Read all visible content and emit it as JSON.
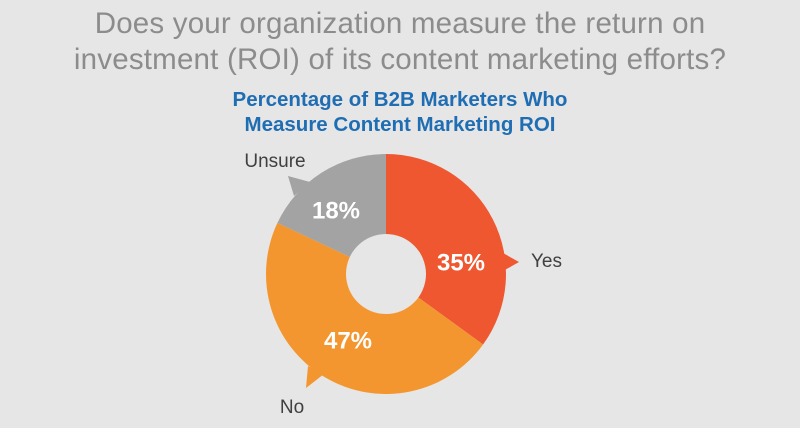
{
  "question": {
    "line1": "Does your organization measure the return on",
    "line2": "investment (ROI) of its content marketing efforts?"
  },
  "chart_data": {
    "type": "pie",
    "variant": "donut",
    "title_line1": "Percentage of B2B Marketers Who",
    "title_line2": "Measure Content Marketing ROI",
    "slices": [
      {
        "label": "Yes",
        "value": 35,
        "display": "35%",
        "color": "#ef5731"
      },
      {
        "label": "No",
        "value": 47,
        "display": "47%",
        "color": "#f4962f"
      },
      {
        "label": "Unsure",
        "value": 18,
        "display": "18%",
        "color": "#a3a3a3"
      }
    ]
  },
  "colors": {
    "background": "#e6e6e6",
    "question_text": "#8c8c8c",
    "title_text": "#1f6db3",
    "label_text": "#404040"
  }
}
